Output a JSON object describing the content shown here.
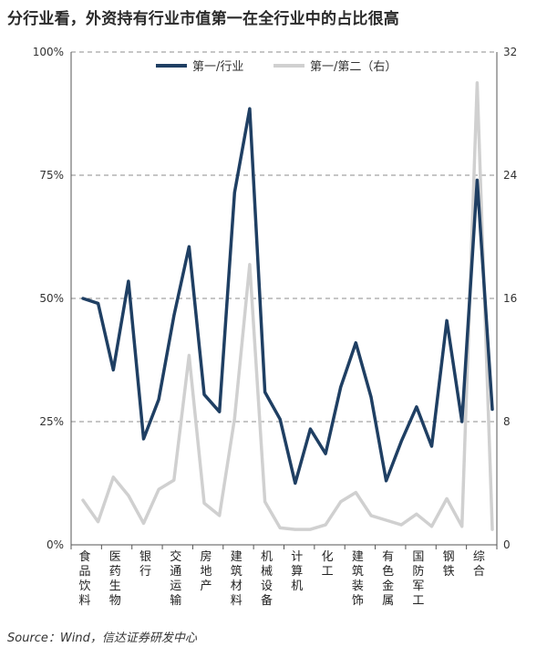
{
  "chart_data": {
    "type": "line",
    "title": "分行业看，外资持有行业市值第一在全行业中的占比很高",
    "source": "Source：Wind，信达证券研发中心",
    "categories": [
      "食品饮料",
      "医药生物",
      "银行",
      "交通运输",
      "房地产",
      "建筑材料",
      "机械设备",
      "计算机",
      "化工",
      "建筑装饰",
      "有色金属",
      "国防军工",
      "钢铁",
      "综合"
    ],
    "x": [
      "食品饮料",
      "",
      "医药生物",
      "",
      "银行",
      "",
      "交通运输",
      "",
      "房地产",
      "",
      "建筑材料",
      "",
      "机械设备",
      "",
      "计算机",
      "",
      "化工",
      "",
      "建筑装饰",
      "",
      "有色金属",
      "",
      "国防军工",
      "",
      "钢铁",
      "",
      "综合",
      ""
    ],
    "left_axis": {
      "ticks": [
        "0%",
        "25%",
        "50%",
        "75%",
        "100%"
      ],
      "ylim": [
        0,
        100
      ]
    },
    "right_axis": {
      "ticks": [
        "0",
        "8",
        "16",
        "24",
        "32"
      ],
      "ylim": [
        0,
        32
      ]
    },
    "legend_placement": "top",
    "grid": "dashed horizontal",
    "series": [
      {
        "name": "第一/行业",
        "axis": "left",
        "color": "#1f3f63",
        "values": [
          50,
          49,
          35.5,
          53.5,
          21.5,
          29.5,
          46.5,
          60.5,
          30.5,
          27,
          71.5,
          88.5,
          31,
          25.5,
          12.5,
          23.5,
          18.5,
          32,
          41,
          30,
          13,
          21,
          28,
          20,
          45.5,
          25,
          74,
          27.5
        ]
      },
      {
        "name": "第一/第二（右）",
        "axis": "right",
        "color": "#d0d0d0",
        "values": [
          2.9,
          1.5,
          4.4,
          3.2,
          1.4,
          3.6,
          4.2,
          12.3,
          2.7,
          1.9,
          8.2,
          18.2,
          2.8,
          1.1,
          1.0,
          1.0,
          1.3,
          2.8,
          3.4,
          1.9,
          1.6,
          1.3,
          2.0,
          1.2,
          3.0,
          1.2,
          30.0,
          1.0
        ]
      }
    ]
  }
}
